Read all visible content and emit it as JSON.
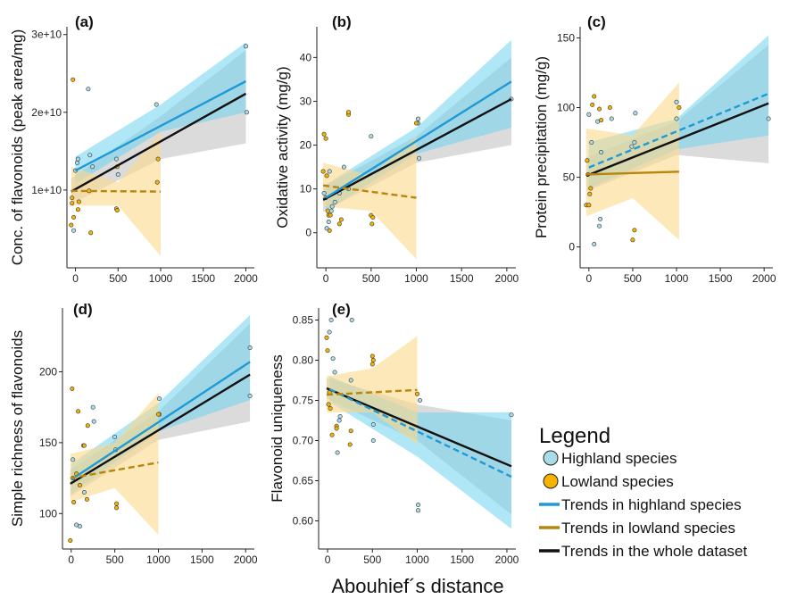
{
  "chart_data": [
    {
      "id": "a",
      "type": "scatter",
      "panel_label": "(a)",
      "ylabel": "Conc. of flavonoids (peak area/mg)",
      "xlim": [
        -100,
        2100
      ],
      "ylim": [
        0,
        31000000000.0
      ],
      "xticks": [
        0,
        500,
        1000,
        1500,
        2000
      ],
      "xtick_labels": [
        "0",
        "500",
        "1000",
        "1500",
        "2000"
      ],
      "yticks": [
        10000000000.0,
        20000000000.0,
        30000000000.0
      ],
      "ytick_labels": [
        "1e+10",
        "2e+10",
        "3e+10"
      ],
      "points_highland": [
        [
          -20,
          4800000000.0
        ],
        [
          0,
          12500000000.0
        ],
        [
          20,
          13500000000.0
        ],
        [
          30,
          14000000000.0
        ],
        [
          150,
          23000000000.0
        ],
        [
          170,
          14500000000.0
        ],
        [
          200,
          13000000000.0
        ],
        [
          480,
          14000000000.0
        ],
        [
          500,
          12000000000.0
        ],
        [
          950,
          21000000000.0
        ],
        [
          2000,
          28500000000.0
        ],
        [
          2010,
          20000000000.0
        ]
      ],
      "points_lowland": [
        [
          -50,
          5500000000.0
        ],
        [
          -40,
          8300000000.0
        ],
        [
          -40,
          9000000000.0
        ],
        [
          -30,
          24200000000.0
        ],
        [
          -20,
          6500000000.0
        ],
        [
          30,
          7500000000.0
        ],
        [
          40,
          8500000000.0
        ],
        [
          160,
          9900000000.0
        ],
        [
          180,
          4500000000.0
        ],
        [
          480,
          7600000000.0
        ],
        [
          490,
          7400000000.0
        ],
        [
          490,
          13000000000.0
        ],
        [
          960,
          11000000000.0
        ],
        [
          970,
          14000000000.0
        ]
      ],
      "series": [
        {
          "name": "Trends in highland species",
          "dashed": false,
          "x": [
            0,
            2000
          ],
          "y": [
            12500000000.0,
            24000000000.0
          ],
          "band_x": [
            0,
            1000,
            2000
          ],
          "band_lo": [
            10800000000.0,
            17500000000.0,
            20000000000.0
          ],
          "band_hi": [
            14300000000.0,
            21000000000.0,
            29000000000.0
          ]
        },
        {
          "name": "Trends in lowland species",
          "dashed": true,
          "x": [
            -50,
            1000
          ],
          "y": [
            9900000000.0,
            9800000000.0
          ],
          "band_x": [
            -50,
            500,
            1000
          ],
          "band_lo": [
            8000000000.0,
            8000000000.0,
            1500000000.0
          ],
          "band_hi": [
            13000000000.0,
            11000000000.0,
            17500000000.0
          ]
        },
        {
          "name": "Trends in the whole dataset",
          "dashed": false,
          "x": [
            -50,
            2000
          ],
          "y": [
            9800000000.0,
            22400000000.0
          ],
          "band_x": [
            -50,
            1000,
            2000
          ],
          "band_lo": [
            8200000000.0,
            14000000000.0,
            16000000000.0
          ],
          "band_hi": [
            11500000000.0,
            19500000000.0,
            28000000000.0
          ]
        }
      ]
    },
    {
      "id": "b",
      "type": "scatter",
      "panel_label": "(b)",
      "ylabel": "Oxidative activity (mg/g)",
      "xlim": [
        -100,
        2100
      ],
      "ylim": [
        -8,
        47
      ],
      "xticks": [
        0,
        500,
        1000,
        1500,
        2000
      ],
      "xtick_labels": [
        "0",
        "500",
        "1000",
        "1500",
        "2000"
      ],
      "yticks": [
        0,
        10,
        20,
        30,
        40
      ],
      "ytick_labels": [
        "0",
        "10",
        "20",
        "30",
        "40"
      ],
      "points_highland": [
        [
          -20,
          9.0
        ],
        [
          0,
          8.0
        ],
        [
          10,
          1.0
        ],
        [
          30,
          2.5
        ],
        [
          40,
          14.0
        ],
        [
          60,
          5.0
        ],
        [
          70,
          6.0
        ],
        [
          100,
          7.0
        ],
        [
          150,
          9.0
        ],
        [
          200,
          15.0
        ],
        [
          250,
          10.0
        ],
        [
          500,
          22.0
        ],
        [
          1020,
          25.0
        ],
        [
          1020,
          26.0
        ],
        [
          1030,
          17.0
        ],
        [
          2050,
          30.5
        ]
      ],
      "points_lowland": [
        [
          -30,
          14.0
        ],
        [
          -20,
          22.5
        ],
        [
          0,
          21.5
        ],
        [
          10,
          13.0
        ],
        [
          20,
          5.0
        ],
        [
          30,
          4.0
        ],
        [
          40,
          0.5
        ],
        [
          50,
          4.0
        ],
        [
          150,
          2.0
        ],
        [
          170,
          3.0
        ],
        [
          250,
          27.0
        ],
        [
          250,
          27.5
        ],
        [
          500,
          4.0
        ],
        [
          510,
          2.0
        ],
        [
          520,
          3.5
        ],
        [
          1000,
          25.0
        ]
      ],
      "series": [
        {
          "name": "Trends in highland species",
          "dashed": false,
          "x": [
            0,
            2050
          ],
          "y": [
            8.0,
            34.5
          ],
          "band_x": [
            0,
            1000,
            2050
          ],
          "band_lo": [
            5.0,
            18.0,
            24.0
          ],
          "band_hi": [
            11.0,
            24.0,
            44.0
          ]
        },
        {
          "name": "Trends in lowland species",
          "dashed": true,
          "x": [
            -30,
            1000
          ],
          "y": [
            10.8,
            8.0
          ],
          "band_x": [
            -30,
            500,
            1000
          ],
          "band_lo": [
            6.0,
            5.0,
            -6.0
          ],
          "band_hi": [
            16.0,
            13.0,
            22.0
          ]
        },
        {
          "name": "Trends in the whole dataset",
          "dashed": false,
          "x": [
            -30,
            2050
          ],
          "y": [
            7.5,
            30.5
          ],
          "band_x": [
            -30,
            1000,
            2050
          ],
          "band_lo": [
            4.8,
            16.0,
            20.0
          ],
          "band_hi": [
            10.5,
            22.0,
            40.0
          ]
        }
      ]
    },
    {
      "id": "c",
      "type": "scatter",
      "panel_label": "(c)",
      "ylabel": "Protein precipitation (mg/g)",
      "xlim": [
        -100,
        2100
      ],
      "ylim": [
        -15,
        158
      ],
      "xticks": [
        0,
        500,
        1000,
        1500,
        2000
      ],
      "xtick_labels": [
        "0",
        "500",
        "1000",
        "1500",
        "2000"
      ],
      "yticks": [
        0,
        50,
        100,
        150
      ],
      "ytick_labels": [
        "0",
        "50",
        "100",
        "150"
      ],
      "points_highland": [
        [
          0,
          95
        ],
        [
          30,
          75
        ],
        [
          60,
          2
        ],
        [
          100,
          90
        ],
        [
          120,
          15
        ],
        [
          130,
          20
        ],
        [
          140,
          68
        ],
        [
          260,
          92
        ],
        [
          490,
          72
        ],
        [
          520,
          75
        ],
        [
          530,
          96
        ],
        [
          1000,
          92
        ],
        [
          1000,
          104
        ],
        [
          2050,
          92
        ]
      ],
      "points_lowland": [
        [
          -30,
          30
        ],
        [
          -20,
          62
        ],
        [
          -10,
          52
        ],
        [
          0,
          30
        ],
        [
          10,
          38
        ],
        [
          20,
          42
        ],
        [
          40,
          102
        ],
        [
          60,
          108
        ],
        [
          120,
          99
        ],
        [
          140,
          91
        ],
        [
          240,
          100
        ],
        [
          500,
          5
        ],
        [
          520,
          12
        ],
        [
          1030,
          100
        ]
      ],
      "series": [
        {
          "name": "Trends in highland species",
          "dashed": true,
          "x": [
            0,
            2050
          ],
          "y": [
            57,
            110
          ],
          "band_x": [
            0,
            1000,
            2050
          ],
          "band_lo": [
            42,
            70,
            80
          ],
          "band_hi": [
            75,
            92,
            152
          ]
        },
        {
          "name": "Trends in lowland species",
          "dashed": false,
          "x": [
            -30,
            1030
          ],
          "y": [
            52,
            54
          ],
          "band_x": [
            -30,
            500,
            1030
          ],
          "band_lo": [
            22,
            35,
            5
          ],
          "band_hi": [
            85,
            80,
            118
          ]
        },
        {
          "name": "Trends in the whole dataset",
          "dashed": false,
          "x": [
            -30,
            2050
          ],
          "y": [
            51,
            103
          ],
          "band_x": [
            -30,
            1000,
            2050
          ],
          "band_lo": [
            40,
            66,
            60
          ],
          "band_hi": [
            64,
            90,
            145
          ]
        }
      ]
    },
    {
      "id": "d",
      "type": "scatter",
      "panel_label": "(d)",
      "ylabel": "Simple richness of flavonoids",
      "xlim": [
        -100,
        2100
      ],
      "ylim": [
        75,
        245
      ],
      "xticks": [
        0,
        500,
        1000,
        1500,
        2000
      ],
      "xtick_labels": [
        "0",
        "500",
        "1000",
        "1500",
        "2000"
      ],
      "yticks": [
        100,
        150,
        200
      ],
      "ytick_labels": [
        "100",
        "150",
        "200"
      ],
      "points_highland": [
        [
          20,
          138
        ],
        [
          60,
          92
        ],
        [
          100,
          91
        ],
        [
          140,
          148
        ],
        [
          150,
          115
        ],
        [
          250,
          175
        ],
        [
          260,
          165
        ],
        [
          500,
          154
        ],
        [
          510,
          145
        ],
        [
          1010,
          181
        ],
        [
          1010,
          170
        ],
        [
          2050,
          217
        ],
        [
          2050,
          183
        ]
      ],
      "points_lowland": [
        [
          -10,
          81
        ],
        [
          10,
          188
        ],
        [
          20,
          125
        ],
        [
          30,
          108
        ],
        [
          60,
          128
        ],
        [
          80,
          172
        ],
        [
          100,
          120
        ],
        [
          150,
          148
        ],
        [
          180,
          110
        ],
        [
          190,
          162
        ],
        [
          520,
          107
        ],
        [
          520,
          104
        ],
        [
          1000,
          170
        ]
      ],
      "series": [
        {
          "name": "Trends in highland species",
          "dashed": false,
          "x": [
            0,
            2050
          ],
          "y": [
            124,
            207
          ],
          "band_x": [
            0,
            1000,
            2050
          ],
          "band_lo": [
            114,
            158,
            180
          ],
          "band_hi": [
            135,
            178,
            240
          ]
        },
        {
          "name": "Trends in lowland species",
          "dashed": true,
          "x": [
            -10,
            1000
          ],
          "y": [
            125,
            136
          ],
          "band_x": [
            -10,
            500,
            1000
          ],
          "band_lo": [
            108,
            118,
            85
          ],
          "band_hi": [
            142,
            150,
            185
          ]
        },
        {
          "name": "Trends in the whole dataset",
          "dashed": false,
          "x": [
            -10,
            2050
          ],
          "y": [
            121,
            198
          ],
          "band_x": [
            -10,
            1000,
            2050
          ],
          "band_lo": [
            112,
            152,
            165
          ],
          "band_hi": [
            131,
            172,
            234
          ]
        }
      ]
    },
    {
      "id": "e",
      "type": "scatter",
      "panel_label": "(e)",
      "ylabel": "Flavonoid uniqueness",
      "xlim": [
        -100,
        2100
      ],
      "ylim": [
        0.565,
        0.865
      ],
      "xticks": [
        0,
        500,
        1000,
        1500,
        2000
      ],
      "xtick_labels": [
        "0",
        "500",
        "1000",
        "1500",
        "2000"
      ],
      "yticks": [
        0.6,
        0.65,
        0.7,
        0.75,
        0.8,
        0.85
      ],
      "ytick_labels": [
        "0.60",
        "0.65",
        "0.70",
        "0.75",
        "0.80",
        "0.85"
      ],
      "points_highland": [
        [
          20,
          0.835
        ],
        [
          40,
          0.85
        ],
        [
          60,
          0.802
        ],
        [
          80,
          0.785
        ],
        [
          110,
          0.685
        ],
        [
          130,
          0.725
        ],
        [
          140,
          0.73
        ],
        [
          270,
          0.85
        ],
        [
          260,
          0.775
        ],
        [
          510,
          0.7
        ],
        [
          510,
          0.72
        ],
        [
          1010,
          0.62
        ],
        [
          1010,
          0.613
        ],
        [
          1030,
          0.75
        ],
        [
          2050,
          0.732
        ]
      ],
      "points_lowland": [
        [
          -10,
          0.828
        ],
        [
          0,
          0.812
        ],
        [
          10,
          0.745
        ],
        [
          20,
          0.76
        ],
        [
          30,
          0.74
        ],
        [
          50,
          0.707
        ],
        [
          100,
          0.718
        ],
        [
          100,
          0.715
        ],
        [
          250,
          0.695
        ],
        [
          260,
          0.712
        ],
        [
          500,
          0.805
        ],
        [
          500,
          0.795
        ],
        [
          510,
          0.8
        ],
        [
          1000,
          0.758
        ]
      ],
      "series": [
        {
          "name": "Trends in highland species",
          "dashed": true,
          "x": [
            20,
            2050
          ],
          "y": [
            0.764,
            0.655
          ],
          "band_x": [
            20,
            1000,
            2050
          ],
          "band_lo": [
            0.748,
            0.68,
            0.59
          ],
          "band_hi": [
            0.78,
            0.735,
            0.735
          ]
        },
        {
          "name": "Trends in lowland species",
          "dashed": true,
          "x": [
            -10,
            1000
          ],
          "y": [
            0.757,
            0.763
          ],
          "band_x": [
            -10,
            500,
            1000
          ],
          "band_lo": [
            0.735,
            0.735,
            0.695
          ],
          "band_hi": [
            0.78,
            0.79,
            0.83
          ]
        },
        {
          "name": "Trends in the whole dataset",
          "dashed": false,
          "x": [
            -10,
            2050
          ],
          "y": [
            0.765,
            0.668
          ],
          "band_x": [
            -10,
            1000,
            2050
          ],
          "band_lo": [
            0.752,
            0.7,
            0.608
          ],
          "band_hi": [
            0.778,
            0.745,
            0.725
          ]
        }
      ]
    }
  ],
  "xlabel": "Abouhief´s distance",
  "legend": {
    "title": "Legend",
    "items": [
      {
        "kind": "point",
        "color": "#a8dde8",
        "label": "Highland species"
      },
      {
        "kind": "point",
        "color": "#f5b300",
        "label": "Lowland species"
      },
      {
        "kind": "line",
        "color": "#1f9ad6",
        "label": "Trends in highland species"
      },
      {
        "kind": "line",
        "color": "#b8860b",
        "label": "Trends in lowland species"
      },
      {
        "kind": "line",
        "color": "#111111",
        "label": "Trends in the whole dataset"
      }
    ]
  },
  "colors": {
    "highland_point": "#a8dde8",
    "lowland_point": "#f5b300",
    "highland_line": "#1f9ad6",
    "lowland_line": "#b8860b",
    "whole_line": "#111111",
    "highland_band": "#6fd3f0",
    "lowland_band": "#fbd88a",
    "whole_band": "#bdbdbd"
  }
}
